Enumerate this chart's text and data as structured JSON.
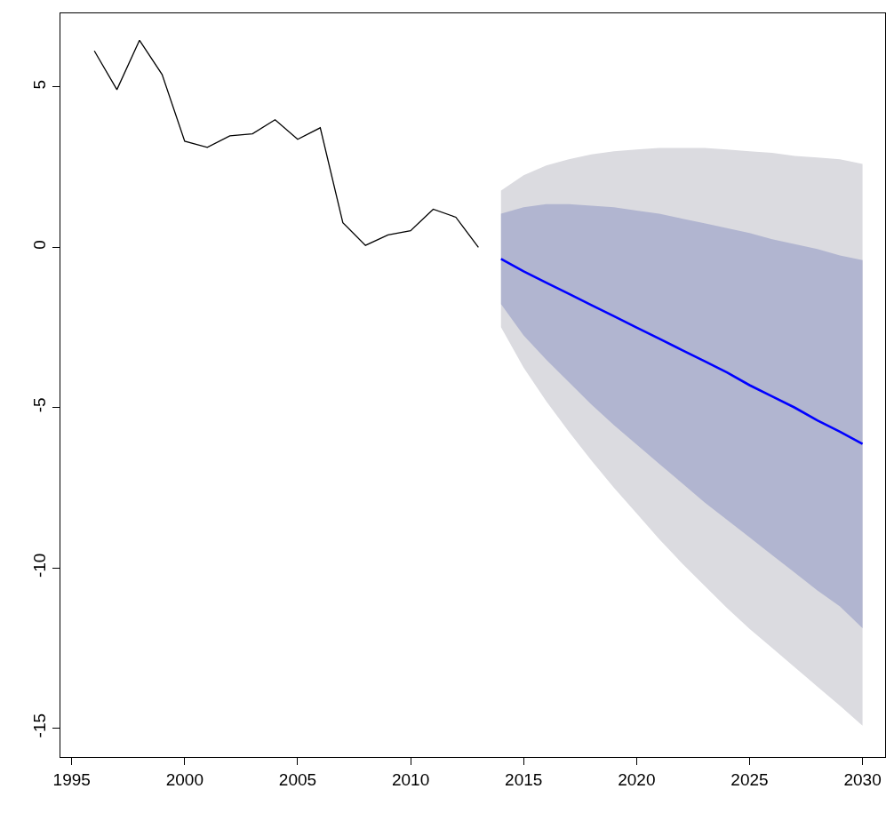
{
  "chart_data": {
    "type": "line",
    "xlim": [
      1994.5,
      2031
    ],
    "ylim": [
      -15.9,
      7.3
    ],
    "xticks": [
      1995,
      2000,
      2005,
      2010,
      2015,
      2020,
      2025,
      2030
    ],
    "yticks": [
      -15,
      -10,
      -5,
      0,
      5
    ],
    "grid": false,
    "marker": "none",
    "line_style": "solid",
    "series": [
      {
        "type": "line",
        "color": "#000000",
        "x": [
          1996,
          1997,
          1998,
          1999,
          2000,
          2001,
          2002,
          2003,
          2004,
          2005,
          2006,
          2007,
          2008,
          2009,
          2010,
          2011,
          2012,
          2013
        ],
        "values": [
          6.13,
          4.92,
          6.46,
          5.39,
          3.31,
          3.12,
          3.48,
          3.54,
          3.98,
          3.37,
          3.73,
          0.77,
          0.06,
          0.39,
          0.52,
          1.19,
          0.94,
          0
        ]
      },
      {
        "color": "#dbdbe0",
        "x": [
          2014,
          2015,
          2016,
          2017,
          2018,
          2019,
          2020,
          2021,
          2022,
          2023,
          2024,
          2025,
          2026,
          2027,
          2028,
          2029,
          2030
        ],
        "values": [
          null,
          null,
          null,
          null,
          null,
          null,
          null,
          null,
          null,
          null,
          null,
          null,
          null,
          null,
          null,
          null,
          null
        ],
        "lower": [
          -2.49,
          -3.75,
          -4.8,
          -5.75,
          -6.65,
          -7.5,
          -8.3,
          -9.1,
          -9.85,
          -10.55,
          -11.25,
          -11.9,
          -12.5,
          -13.1,
          -13.7,
          -14.3,
          -14.92
        ],
        "upper": [
          1.77,
          2.25,
          2.55,
          2.75,
          2.9,
          3.0,
          3.05,
          3.1,
          3.1,
          3.1,
          3.05,
          3.0,
          2.95,
          2.85,
          2.8,
          2.75,
          2.6
        ]
      },
      {
        "color": "#b1b5d0",
        "x": [
          2014,
          2015,
          2016,
          2017,
          2018,
          2019,
          2020,
          2021,
          2022,
          2023,
          2024,
          2025,
          2026,
          2027,
          2028,
          2029,
          2030
        ],
        "values": [
          null,
          null,
          null,
          null,
          null,
          null,
          null,
          null,
          null,
          null,
          null,
          null,
          null,
          null,
          null,
          null,
          null
        ],
        "lower": [
          -1.77,
          -2.75,
          -3.5,
          -4.2,
          -4.9,
          -5.55,
          -6.15,
          -6.75,
          -7.35,
          -7.95,
          -8.5,
          -9.05,
          -9.6,
          -10.15,
          -10.7,
          -11.2,
          -11.88
        ],
        "upper": [
          1.05,
          1.25,
          1.35,
          1.35,
          1.3,
          1.25,
          1.15,
          1.05,
          0.9,
          0.75,
          0.6,
          0.45,
          0.25,
          0.1,
          -0.05,
          -0.25,
          -0.4
        ]
      },
      {
        "type": "line",
        "color": "#0000ff",
        "x": [
          2014,
          2015,
          2016,
          2017,
          2018,
          2019,
          2020,
          2021,
          2022,
          2023,
          2024,
          2025,
          2026,
          2027,
          2028,
          2029,
          2030
        ],
        "values": [
          -0.36,
          -0.75,
          -1.1,
          -1.45,
          -1.8,
          -2.15,
          -2.5,
          -2.85,
          -3.2,
          -3.55,
          -3.9,
          -4.3,
          -4.65,
          -5.0,
          -5.4,
          -5.75,
          -6.13
        ]
      }
    ]
  }
}
